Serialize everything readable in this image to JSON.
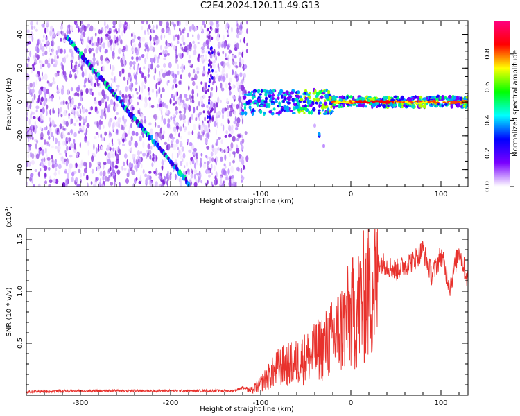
{
  "title": "C2E4.2024.120.11.49.G13",
  "colors": {
    "signal": "#e8312c",
    "speckle": "#8a2be2",
    "axis": "#000000"
  },
  "chart_data": [
    {
      "type": "heatmap",
      "xlabel": "Height of straight line (km)",
      "ylabel": "Frequency (Hz)",
      "xlim": [
        -360,
        130
      ],
      "ylim": [
        -50,
        48
      ],
      "x_ticks": [
        -300,
        -200,
        -100,
        0,
        100
      ],
      "x_tick_labels": [
        "-300",
        "-200",
        "-100",
        "0",
        "100"
      ],
      "y_ticks": [
        -40,
        -20,
        0,
        20,
        40
      ],
      "y_tick_labels": [
        "-40",
        "-20",
        "0",
        "20",
        "40"
      ],
      "colorbar": {
        "label": "Normalized spectral amplitude",
        "range": [
          0,
          1
        ],
        "ticks": [
          0,
          0.2,
          0.4,
          0.6,
          0.8
        ],
        "tick_labels": [
          "0.0",
          "0.2",
          "0.4",
          "0.6",
          "0.8"
        ],
        "colormap": [
          "#ffffff",
          "#7a00ff",
          "#0000ff",
          "#00ffff",
          "#00ff00",
          "#ffff00",
          "#ff0000",
          "#ff0080"
        ]
      },
      "features": [
        {
          "name": "diagonal trace",
          "from": [
            -315,
            38
          ],
          "to": [
            -180,
            -48
          ]
        },
        {
          "name": "central band",
          "x_range": [
            -120,
            130
          ],
          "frequency": 0
        }
      ]
    },
    {
      "type": "line",
      "xlabel": "Height of straight line (km)",
      "ylabel": "SNR (10 * v/v)",
      "y_scale_label": "(x10",
      "y_scale_exp": "4",
      "y_scale_close": ")",
      "xlim": [
        -360,
        130
      ],
      "ylim": [
        0,
        1.6
      ],
      "x_ticks": [
        -300,
        -200,
        -100,
        0,
        100
      ],
      "x_tick_labels": [
        "-300",
        "-200",
        "-100",
        "0",
        "100"
      ],
      "y_ticks": [
        0.5,
        1.0,
        1.5
      ],
      "y_tick_labels": [
        "0.5",
        "1.0",
        "1.5"
      ],
      "series": [
        {
          "x": [
            -360,
            -300,
            -200,
            -130,
            -120,
            -110,
            -100,
            -80,
            -60,
            -40,
            -20,
            0,
            10,
            20,
            30,
            40,
            50,
            60,
            70,
            80,
            90,
            100,
            110,
            120,
            130
          ],
          "y": [
            0.02,
            0.03,
            0.03,
            0.03,
            0.06,
            0.05,
            0.12,
            0.3,
            0.35,
            0.45,
            0.6,
            0.85,
            0.95,
            1.15,
            1.3,
            1.25,
            1.2,
            1.25,
            1.3,
            1.4,
            1.15,
            1.35,
            1.05,
            1.4,
            1.1
          ]
        }
      ]
    }
  ]
}
